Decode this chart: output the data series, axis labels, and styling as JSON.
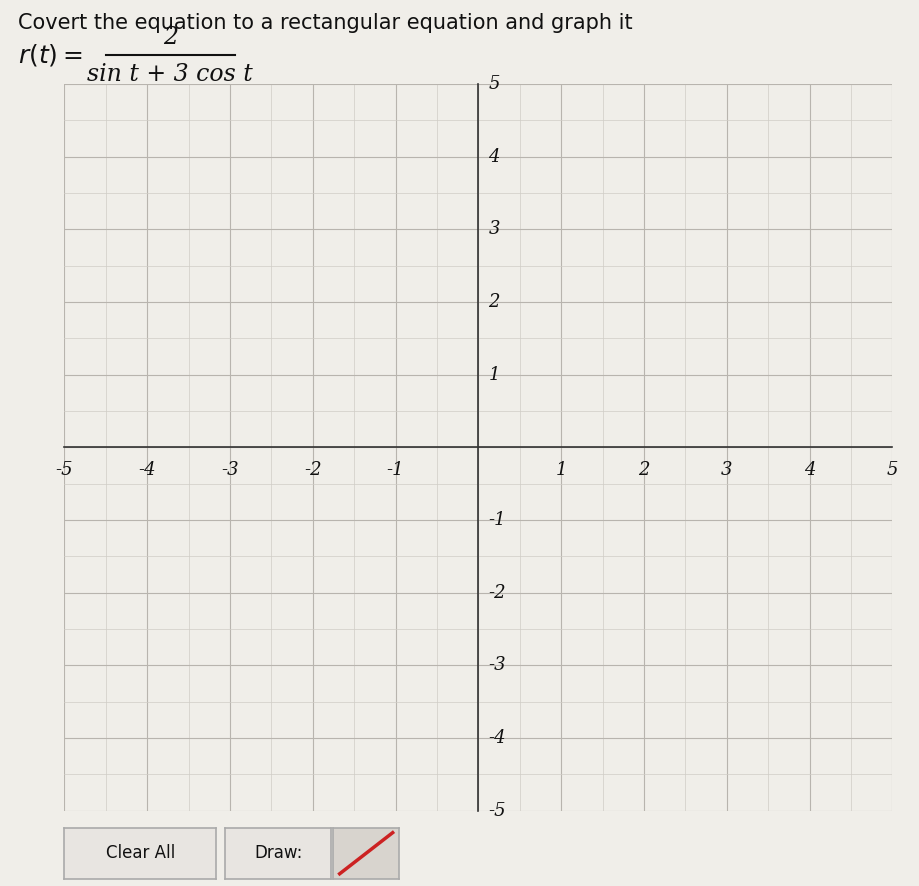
{
  "title_line1": "Covert the equation to a rectangular equation and graph it",
  "formula_num": "2",
  "formula_den": "sin t + 3 cos t",
  "xlim": [
    -5,
    5
  ],
  "ylim": [
    -5,
    5
  ],
  "xticks": [
    -5,
    -4,
    -3,
    -2,
    -1,
    1,
    2,
    3,
    4,
    5
  ],
  "yticks": [
    -5,
    -4,
    -3,
    -2,
    -1,
    1,
    2,
    3,
    4,
    5
  ],
  "minor_step": 0.5,
  "bg_color": "#f0eee9",
  "grid_major_color": "#b8b4ae",
  "grid_minor_color": "#d0ccc6",
  "axis_color": "#333333",
  "tick_label_color": "#111111",
  "title_color": "#111111",
  "button_clear_label": "Clear All",
  "button_draw_label": "Draw:",
  "button_bg": "#e8e5e1",
  "button_border": "#aaaaaa",
  "icon_bg": "#d8d4ce",
  "icon_line_color": "#cc2222"
}
